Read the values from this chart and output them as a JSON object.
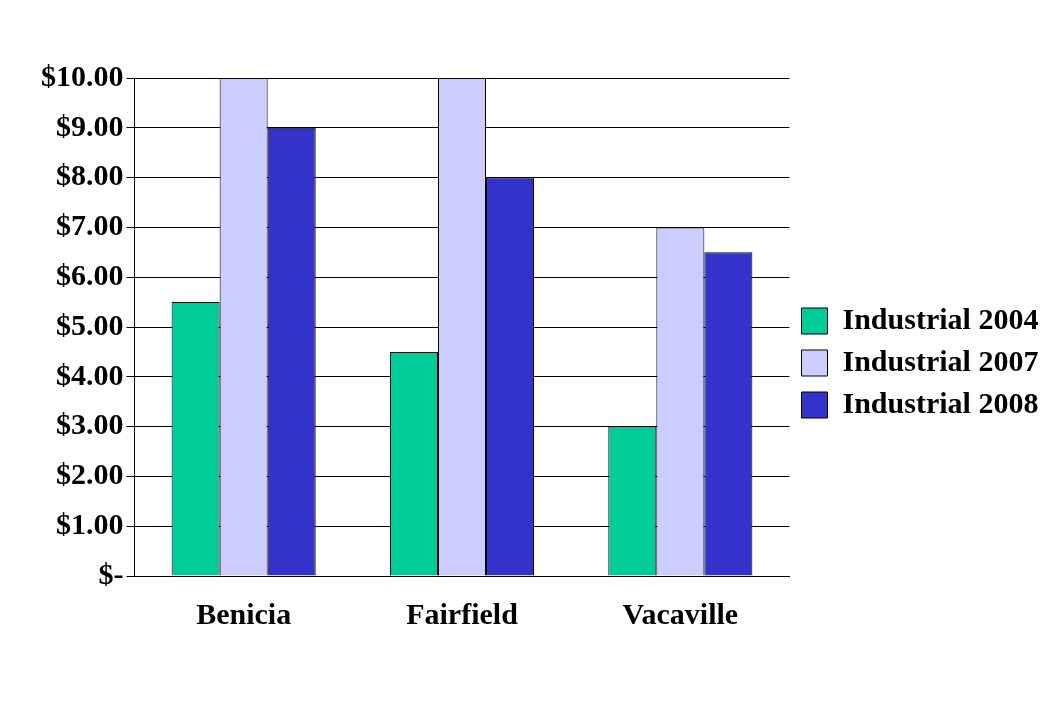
{
  "chart_data": {
    "type": "bar",
    "categories": [
      "Benicia",
      "Fairfield",
      "Vacaville"
    ],
    "series": [
      {
        "name": "Industrial 2004",
        "color": "#00cc99",
        "values": [
          5.5,
          4.5,
          3
        ]
      },
      {
        "name": "Industrial 2007",
        "color": "#ccccff",
        "values": [
          10,
          10,
          7
        ]
      },
      {
        "name": "Industrial 2008",
        "color": "#3333cc",
        "values": [
          9,
          8,
          6.5
        ]
      }
    ],
    "ylim": [
      0,
      10
    ],
    "yticks": [
      {
        "value": 0,
        "label": "$-"
      },
      {
        "value": 1,
        "label": "$1.00"
      },
      {
        "value": 2,
        "label": "$2.00"
      },
      {
        "value": 3,
        "label": "$3.00"
      },
      {
        "value": 4,
        "label": "$4.00"
      },
      {
        "value": 5,
        "label": "$5.00"
      },
      {
        "value": 6,
        "label": "$6.00"
      },
      {
        "value": 7,
        "label": "$7.00"
      },
      {
        "value": 8,
        "label": "$8.00"
      },
      {
        "value": 9,
        "label": "$9.00"
      },
      {
        "value": 10,
        "label": "$10.00"
      }
    ],
    "grid": "y",
    "legend": "right"
  }
}
